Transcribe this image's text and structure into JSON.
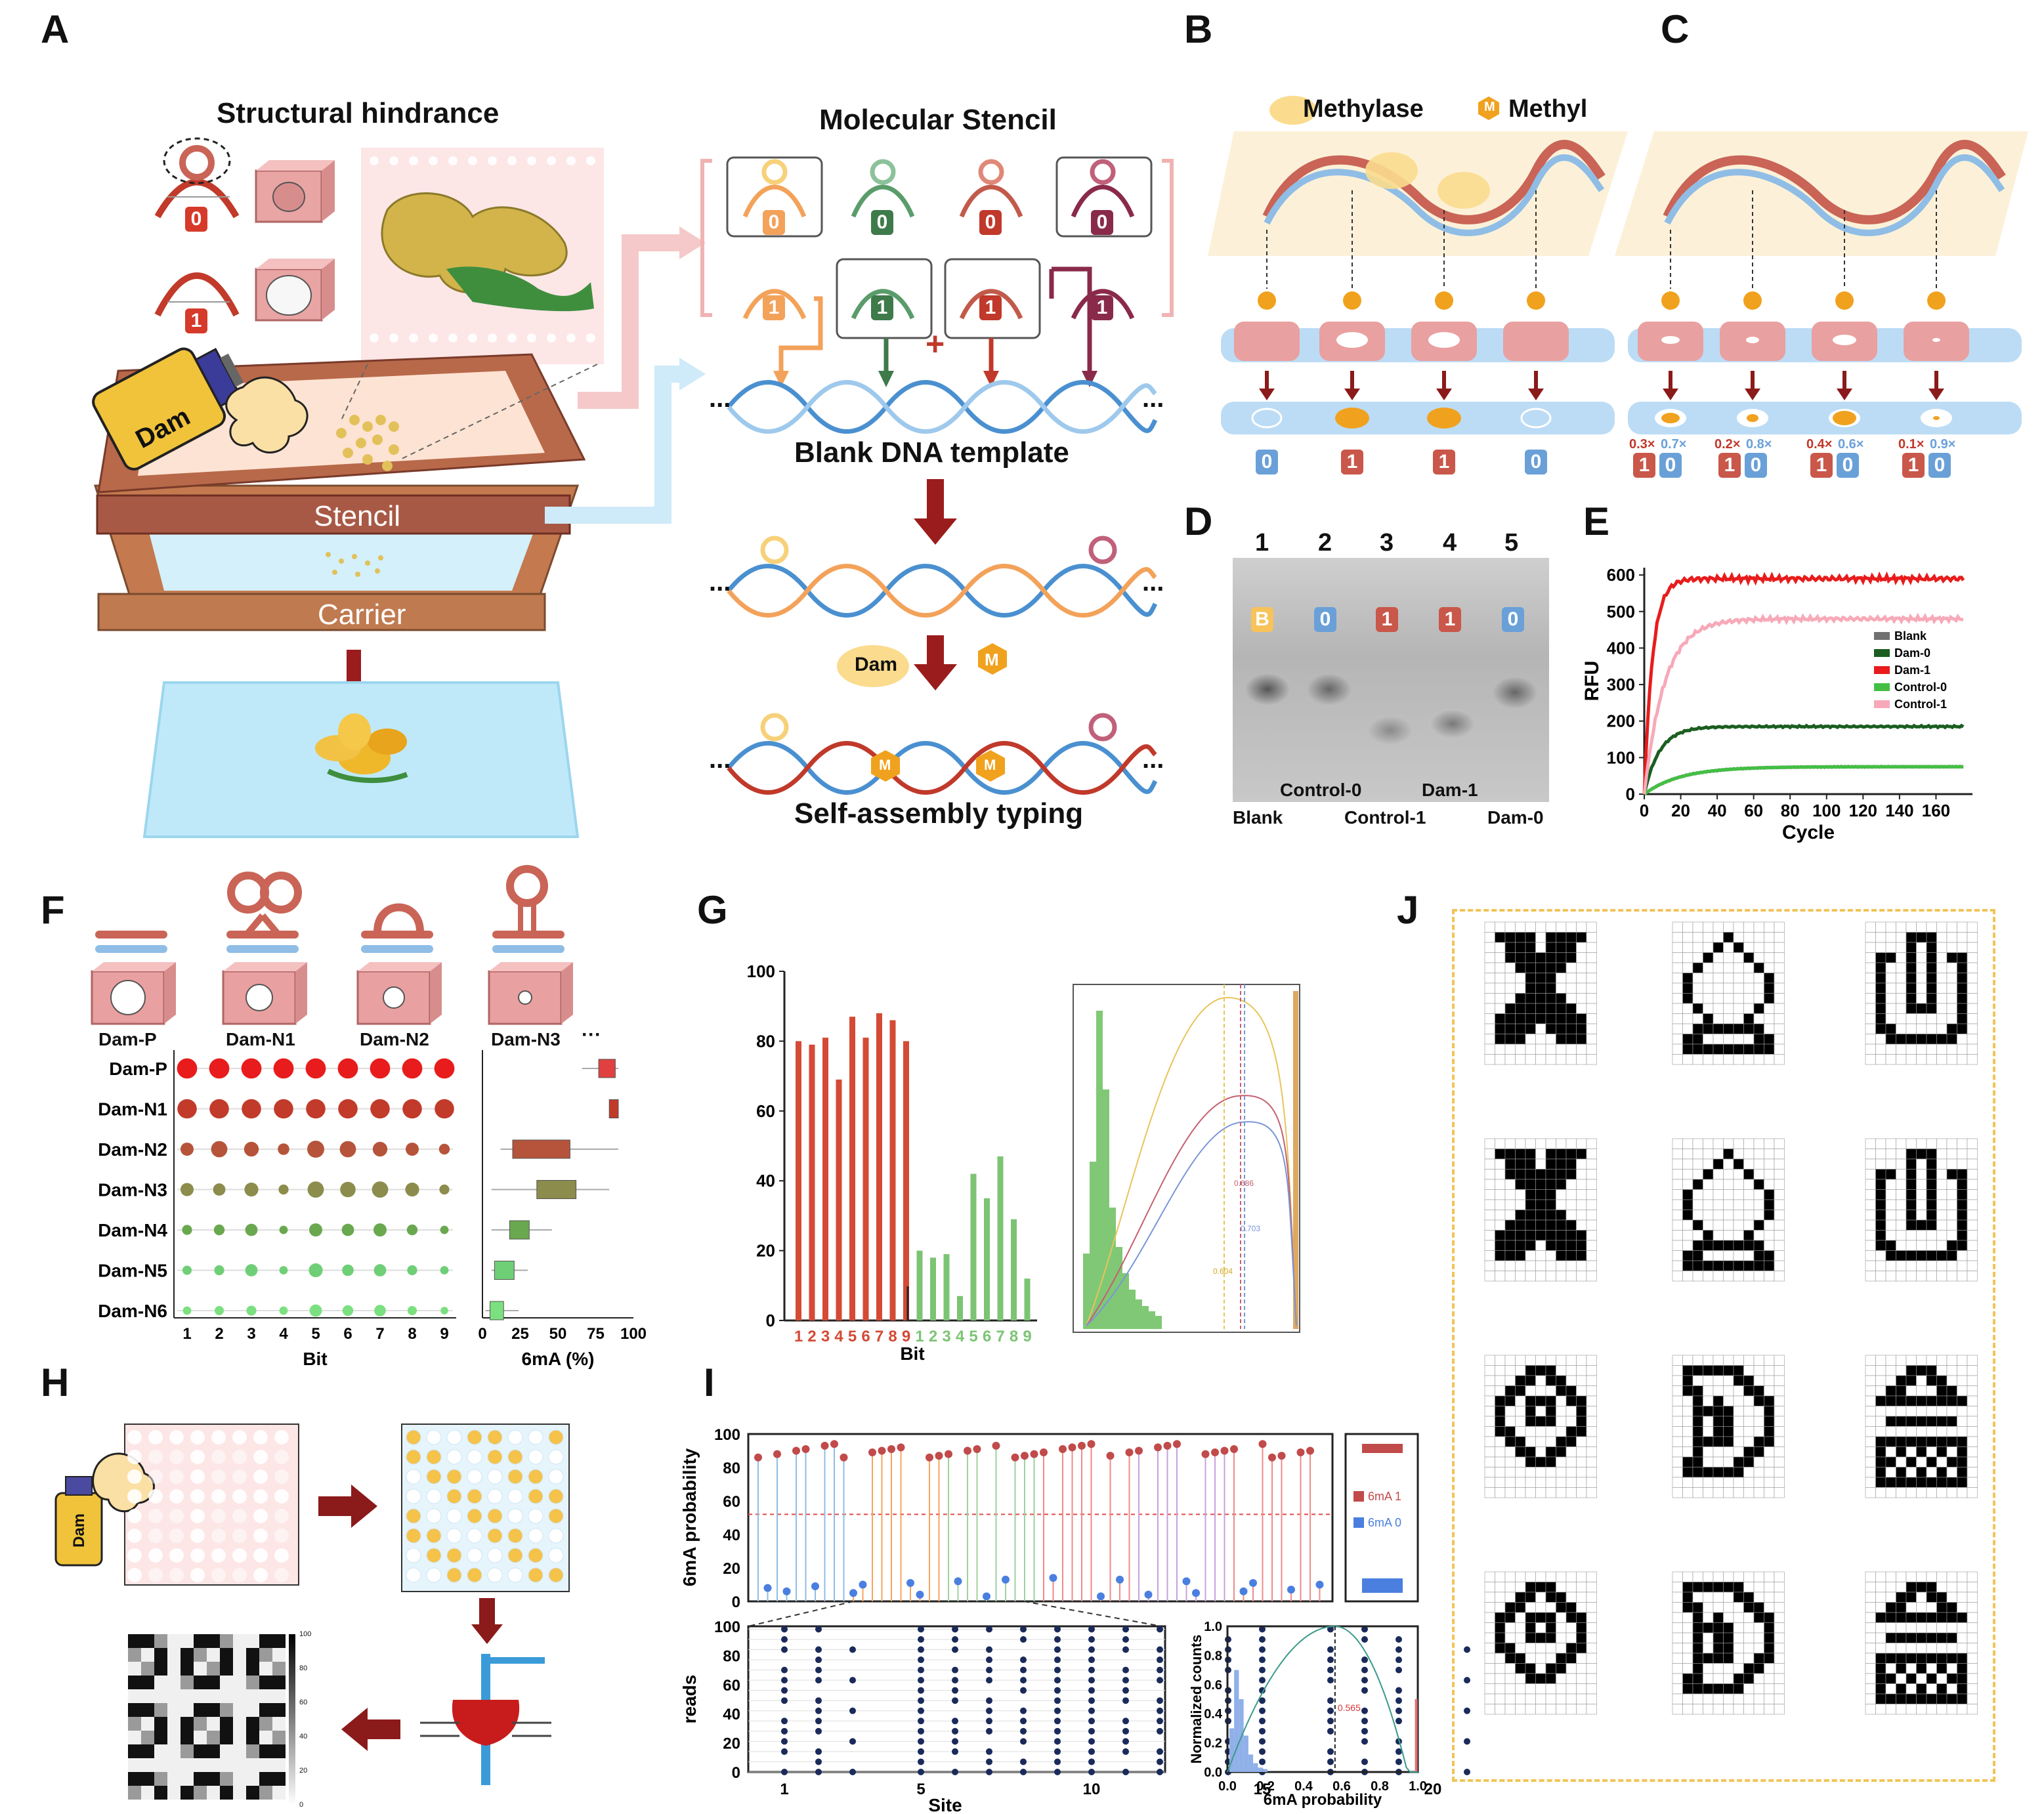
{
  "panel_labels": [
    "A",
    "B",
    "C",
    "D",
    "E",
    "F",
    "G",
    "H",
    "I",
    "J"
  ],
  "panelA": {
    "structural_hindrance": "Structural hindrance",
    "bit0": "0",
    "bit1": "1",
    "spray_label": "Dam",
    "stencil_label": "Stencil",
    "carrier_label": "Carrier",
    "molecular_stencil": "Molecular Stencil",
    "stencil_bits_top": [
      "0",
      "0",
      "0",
      "0"
    ],
    "stencil_bits_bottom": [
      "1",
      "1",
      "1",
      "1"
    ],
    "plus": "+",
    "ellipsis": "...",
    "blank_template": "Blank DNA template",
    "dam_enzyme": "Dam",
    "methyl_M": "M",
    "self_assembly": "Self-assembly typing"
  },
  "panelB": {
    "methylase": "Methylase",
    "methyl": "Methyl",
    "methyl_M": "M",
    "bits": [
      "0",
      "1",
      "1",
      "0"
    ]
  },
  "panelC": {
    "pairs": [
      {
        "a": "0.3×",
        "b": "0.7×"
      },
      {
        "a": "0.2×",
        "b": "0.8×"
      },
      {
        "a": "0.4×",
        "b": "0.6×"
      },
      {
        "a": "0.1×",
        "b": "0.9×"
      }
    ],
    "bit1": "1",
    "bit0": "0"
  },
  "panelD": {
    "lanes": [
      "1",
      "2",
      "3",
      "4",
      "5"
    ],
    "lane_bits": [
      "B",
      "0",
      "1",
      "1",
      "0"
    ],
    "bottom_labels": [
      "Blank",
      "Control-0",
      "Control-1",
      "Dam-1",
      "Dam-0"
    ]
  },
  "chart_data": [
    {
      "panel": "E",
      "type": "line",
      "xlabel": "Cycle",
      "ylabel": "RFU",
      "xlim": [
        0,
        180
      ],
      "ylim": [
        0,
        620
      ],
      "x_ticks": [
        0,
        20,
        40,
        60,
        80,
        100,
        120,
        140,
        160
      ],
      "y_ticks": [
        0,
        100,
        200,
        300,
        400,
        500,
        600
      ],
      "legend_position": "right",
      "series": [
        {
          "name": "Blank",
          "color": "#707070",
          "plateau": 75,
          "k": 0.05
        },
        {
          "name": "Dam-0",
          "color": "#1b5e20",
          "plateau": 185,
          "k": 0.12
        },
        {
          "name": "Dam-1",
          "color": "#e81c1c",
          "plateau": 590,
          "k": 0.22
        },
        {
          "name": "Control-0",
          "color": "#43c043",
          "plateau": 75,
          "k": 0.05
        },
        {
          "name": "Control-1",
          "color": "#f7a9b8",
          "plateau": 480,
          "k": 0.09
        }
      ]
    },
    {
      "panel": "F",
      "type": "scatter",
      "xlabel": "Bit",
      "x_ticks": [
        "1",
        "2",
        "3",
        "4",
        "5",
        "6",
        "7",
        "8",
        "9"
      ],
      "categories": [
        "Dam-P",
        "Dam-N1",
        "Dam-N2",
        "Dam-N3",
        "Dam-N4",
        "Dam-N5",
        "Dam-N6"
      ],
      "sizes": [
        [
          0.95,
          0.95,
          0.95,
          0.95,
          0.95,
          0.95,
          0.95,
          0.95,
          0.95
        ],
        [
          0.9,
          0.9,
          0.9,
          0.9,
          0.9,
          0.9,
          0.9,
          0.9,
          0.9
        ],
        [
          0.5,
          0.7,
          0.6,
          0.4,
          0.75,
          0.7,
          0.6,
          0.5,
          0.35
        ],
        [
          0.5,
          0.45,
          0.55,
          0.3,
          0.7,
          0.65,
          0.7,
          0.55,
          0.3
        ],
        [
          0.3,
          0.35,
          0.45,
          0.2,
          0.5,
          0.45,
          0.5,
          0.35,
          0.2
        ],
        [
          0.25,
          0.3,
          0.45,
          0.2,
          0.55,
          0.4,
          0.45,
          0.3,
          0.2
        ],
        [
          0.2,
          0.25,
          0.3,
          0.2,
          0.45,
          0.35,
          0.4,
          0.25,
          0.15
        ]
      ],
      "colors": [
        "#e81c1c",
        "#c23a2a",
        "#b5543a",
        "#8c8c4c",
        "#6aa84f",
        "#6fcf77",
        "#7be07f"
      ]
    },
    {
      "panel": "F-box",
      "type": "bar",
      "xlabel": "6mA (%)",
      "x_ticks": [
        "0",
        "25",
        "50",
        "75",
        "100"
      ],
      "boxes": [
        {
          "name": "Dam-P",
          "q1": 77,
          "q3": 88,
          "min": 66,
          "max": 90,
          "color": "#e04040"
        },
        {
          "name": "Dam-N1",
          "q1": 84,
          "q3": 90,
          "min": 84,
          "max": 90,
          "color": "#c23a2a"
        },
        {
          "name": "Dam-N2",
          "q1": 20,
          "q3": 58,
          "min": 12,
          "max": 90,
          "color": "#b5543a"
        },
        {
          "name": "Dam-N3",
          "q1": 36,
          "q3": 62,
          "min": 6,
          "max": 84,
          "color": "#8c8c4c"
        },
        {
          "name": "Dam-N4",
          "q1": 18,
          "q3": 31,
          "min": 6,
          "max": 46,
          "color": "#6aa84f"
        },
        {
          "name": "Dam-N5",
          "q1": 8,
          "q3": 21,
          "min": 6,
          "max": 30,
          "color": "#6fcf77"
        },
        {
          "name": "Dam-N6",
          "q1": 5,
          "q3": 14,
          "min": 2,
          "max": 24,
          "color": "#7be07f"
        }
      ]
    },
    {
      "panel": "G",
      "type": "bar",
      "xlabel": "Bit",
      "ylim": [
        0,
        100
      ],
      "y_ticks": [
        "0",
        "20",
        "40",
        "60",
        "80",
        "100"
      ],
      "categories": [
        "1",
        "2",
        "3",
        "4",
        "5",
        "6",
        "7",
        "8",
        "9",
        "1",
        "2",
        "3",
        "4",
        "5",
        "6",
        "7",
        "8",
        "9"
      ],
      "values": [
        80,
        79,
        81,
        69,
        87,
        81,
        88,
        86,
        80,
        20,
        18,
        19,
        7,
        42,
        35,
        47,
        29,
        12
      ],
      "colors": [
        "#d44a35",
        "#7cc474"
      ]
    },
    {
      "panel": "I",
      "type": "scatter",
      "xlabel": "Site",
      "ylabel": "6mA  probability",
      "ylim": [
        0,
        100
      ],
      "y_ticks": [
        "0",
        "20",
        "40",
        "60",
        "80",
        "100"
      ],
      "legend": [
        "6mA 1",
        "6mA 0"
      ],
      "bottom_ylabel": "reads",
      "bottom_x_ticks": [
        "1",
        "5",
        "10",
        "15",
        "20"
      ],
      "bottom_y_ticks": [
        "0",
        "20",
        "40",
        "60",
        "80",
        "100"
      ]
    },
    {
      "panel": "I-density",
      "type": "line",
      "xlabel": "6mA probability",
      "ylabel": "Normalized counts",
      "x_ticks": [
        "0.0",
        "0.2",
        "0.4",
        "0.6",
        "0.8",
        "1.0"
      ],
      "y_ticks": [
        "0.0",
        "0.2",
        "0.4",
        "0.6",
        "0.8",
        "1.0"
      ],
      "annotation": "0.565"
    }
  ],
  "panelF_schemas": [
    "Dam-P",
    "Dam-N1",
    "Dam-N2",
    "Dam-N3"
  ],
  "panelF_more": "···",
  "panelG_inset_annotations": [
    "0.686",
    "0.703",
    "0.604"
  ],
  "panelH_heat_ticks": [
    "100",
    "80",
    "60",
    "40",
    "20",
    "0"
  ],
  "panelH_spray": "Dam",
  "panelJ": {
    "grids": [
      "00000000000|01111011110|00111011100|00111111100|00011111000|00001110000|00001110000|00011111000|00111111100|01111111110|01111011110|01110001110|00000000000|00000000000",
      "00000000000|00000100000|00001010000|00010001000|00100000100|01000000010|01000000010|01000000010|00100000100|00010001000|00111111100|01100000110|01111111110|00000000000",
      "00000000000|00001110000|00001010000|01101010110|01001010010|01001010010|01001010010|01001010010|01001110010|01000000010|01100000110|00111111100|00000000000|00000000000",
      "00000000000|01111011110|00111011100|00111111100|00011111000|00001110000|00001110000|00011111000|00111111100|01111111110|01111011110|01110001110|00000000000|00000000000",
      "00000000000|00000100000|00001010000|00010001000|00100000100|01000000010|01000000010|01000000010|00100000100|00010001000|00111111100|01100000110|01111111110|00000000000",
      "00000000000|00001110000|00001010000|01101010110|01001010010|01001010010|01001010010|01001010010|01001110010|01000000010|01100000110|00111111100|00000000000|00000000000",
      "00000000000|00001110000|00011011000|00110001100|01101110110|01001010010|01001110010|01100000110|00110001100|00011011000|00001110000|00000000000|00000000000|00000000000",
      "00000000000|01111110000|01000011000|01100001100|00101000110|00111100010|00101100010|00101100010|00111100110|00100001100|01100011000|01111110000|00000000000|00000000000",
      "00000000000|00001110000|00011011000|00110001100|01111111110|00000000000|00111111100|00000000000|01111111110|01010101010|01101010110|01010101010|01111111110|00000000000",
      "00000000000|00001110000|00011011000|00110001100|01101110110|01001010010|01001110010|01100000110|00110001100|00011011000|00001110000|00000000000|00000000000|00000000000",
      "00000000000|01111110000|01000011000|01100001100|00101000110|00111100010|00101100010|00101100010|00111100110|00100001100|01100011000|01111110000|00000000000|00000000000",
      "00000000000|00001110000|00011011000|00110001100|01111111110|00000000000|00111111100|00000000000|01111111110|01010101010|01101010110|01010101010|01111111110|00000000000"
    ]
  }
}
